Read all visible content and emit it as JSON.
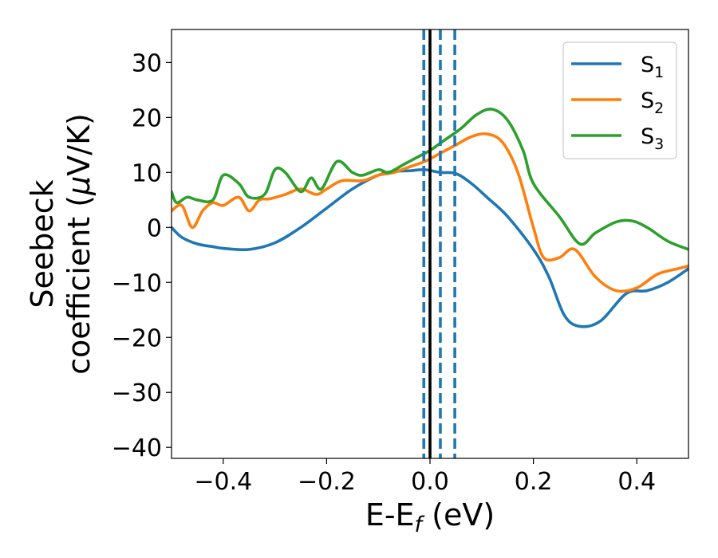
{
  "chart_data": {
    "type": "line",
    "xlabel": {
      "main": "E-E",
      "sub": "f",
      "unit": " (eV)"
    },
    "ylabel": {
      "line1": "Seebeck",
      "line2": "coefficient  (",
      "mu": "μ",
      "unit": "V/K)"
    },
    "xlim": [
      -0.5,
      0.5
    ],
    "ylim": [
      -42,
      36
    ],
    "xticks": [
      -0.4,
      -0.2,
      0.0,
      0.2,
      0.4
    ],
    "xtick_labels": [
      "−0.4",
      "−0.2",
      "0.0",
      "0.2",
      "0.4"
    ],
    "yticks": [
      -40,
      -30,
      -20,
      -10,
      0,
      10,
      20,
      30
    ],
    "ytick_labels": [
      "−40",
      "−30",
      "−20",
      "−10",
      "0",
      "10",
      "20",
      "30"
    ],
    "grid": false,
    "legend_position": "top-right",
    "vlines": [
      {
        "x": 0.0,
        "style": "solid",
        "color": "#000000"
      },
      {
        "x": -0.012,
        "style": "dashed",
        "color": "#1f77b4"
      },
      {
        "x": 0.02,
        "style": "dashed",
        "color": "#1f77b4"
      },
      {
        "x": 0.048,
        "style": "dashed",
        "color": "#1f77b4"
      }
    ],
    "series": [
      {
        "name": "S",
        "sub": "1",
        "color": "#1f77b4",
        "x": [
          -0.5,
          -0.48,
          -0.45,
          -0.42,
          -0.4,
          -0.35,
          -0.3,
          -0.25,
          -0.2,
          -0.15,
          -0.1,
          -0.07,
          -0.04,
          -0.01,
          0.02,
          0.05,
          0.08,
          0.11,
          0.15,
          0.2,
          0.23,
          0.26,
          0.29,
          0.33,
          0.38,
          0.42,
          0.46,
          0.5
        ],
        "y": [
          0,
          -1.8,
          -3,
          -3.5,
          -3.8,
          -4,
          -2.8,
          0,
          3.5,
          7,
          9.5,
          10.2,
          10.3,
          10.5,
          10,
          9.8,
          8,
          5.5,
          2,
          -4,
          -9,
          -16,
          -18,
          -17,
          -12,
          -11.5,
          -10,
          -7.5
        ]
      },
      {
        "name": "S",
        "sub": "2",
        "color": "#ff7f0e",
        "x": [
          -0.5,
          -0.48,
          -0.46,
          -0.44,
          -0.42,
          -0.4,
          -0.37,
          -0.35,
          -0.33,
          -0.31,
          -0.28,
          -0.25,
          -0.22,
          -0.2,
          -0.17,
          -0.13,
          -0.1,
          -0.07,
          -0.04,
          -0.01,
          0.02,
          0.05,
          0.08,
          0.11,
          0.14,
          0.17,
          0.2,
          0.22,
          0.25,
          0.28,
          0.32,
          0.36,
          0.4,
          0.44,
          0.48,
          0.5
        ],
        "y": [
          3,
          4,
          0,
          3,
          4.5,
          4,
          5.5,
          3,
          5,
          5.2,
          6,
          7,
          6,
          7,
          8.5,
          8.5,
          9.5,
          10,
          11,
          12,
          13.5,
          15,
          16.5,
          17,
          15.5,
          10,
          0,
          -5.5,
          -5.5,
          -4,
          -9,
          -11.5,
          -11,
          -8.5,
          -7.5,
          -7
        ]
      },
      {
        "name": "S",
        "sub": "3",
        "color": "#2ca02c",
        "x": [
          -0.5,
          -0.49,
          -0.47,
          -0.45,
          -0.42,
          -0.4,
          -0.37,
          -0.35,
          -0.32,
          -0.3,
          -0.28,
          -0.25,
          -0.23,
          -0.21,
          -0.18,
          -0.15,
          -0.13,
          -0.1,
          -0.08,
          -0.05,
          -0.02,
          0.0,
          0.03,
          0.06,
          0.09,
          0.12,
          0.15,
          0.18,
          0.2,
          0.25,
          0.29,
          0.32,
          0.36,
          0.39,
          0.42,
          0.46,
          0.5
        ],
        "y": [
          6.5,
          4.5,
          5.5,
          5,
          5,
          9.5,
          8,
          5.5,
          6,
          10.5,
          10,
          6.5,
          9,
          7,
          12,
          10,
          9.5,
          10.5,
          10,
          11.5,
          13,
          14,
          16,
          18,
          20.5,
          21.5,
          19.5,
          14,
          8,
          2,
          -3,
          -1,
          1,
          1.2,
          0,
          -2.5,
          -4
        ]
      }
    ]
  }
}
